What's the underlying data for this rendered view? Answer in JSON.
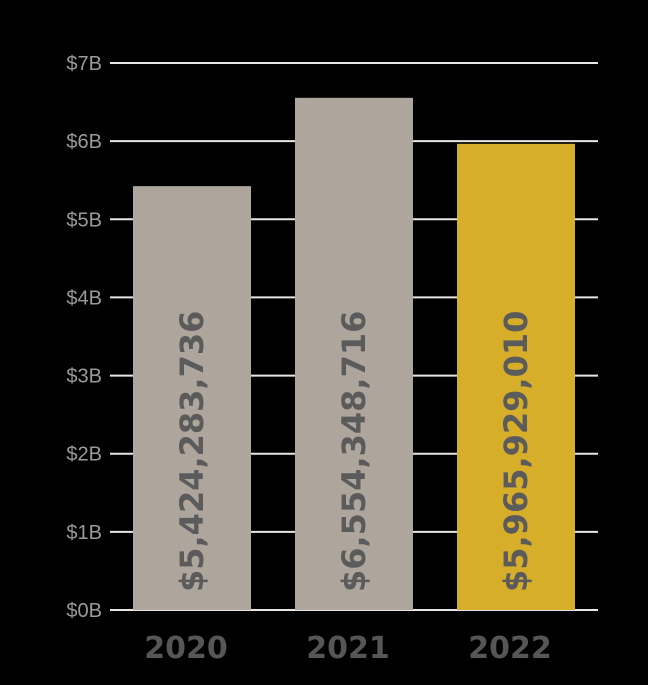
{
  "chart_data": {
    "type": "bar",
    "title": "",
    "xlabel": "",
    "ylabel": "",
    "categories": [
      "2020",
      "2021",
      "2022"
    ],
    "values": [
      5424283736,
      6554348716,
      5965929010
    ],
    "data_labels": [
      "$5,424,283,736",
      "$6,554,348,716",
      "$5,965,929,010"
    ],
    "ylim": [
      0,
      7000000000
    ],
    "yticks": [
      0,
      1000000000,
      2000000000,
      3000000000,
      4000000000,
      5000000000,
      6000000000,
      7000000000
    ],
    "ytick_labels": [
      "$0B",
      "$1B",
      "$2B",
      "$3B",
      "$4B",
      "$5B",
      "$6B",
      "$7B"
    ],
    "grid": true,
    "legend": "none",
    "colors": {
      "background": "#000000",
      "bars": [
        "#aea69c",
        "#aea69c",
        "#d6ae2a"
      ],
      "grid": "#e6e6e6",
      "tick_text": "#9a9a9a",
      "category_text": "#565656",
      "data_label_text": "#5b5b5b"
    }
  }
}
